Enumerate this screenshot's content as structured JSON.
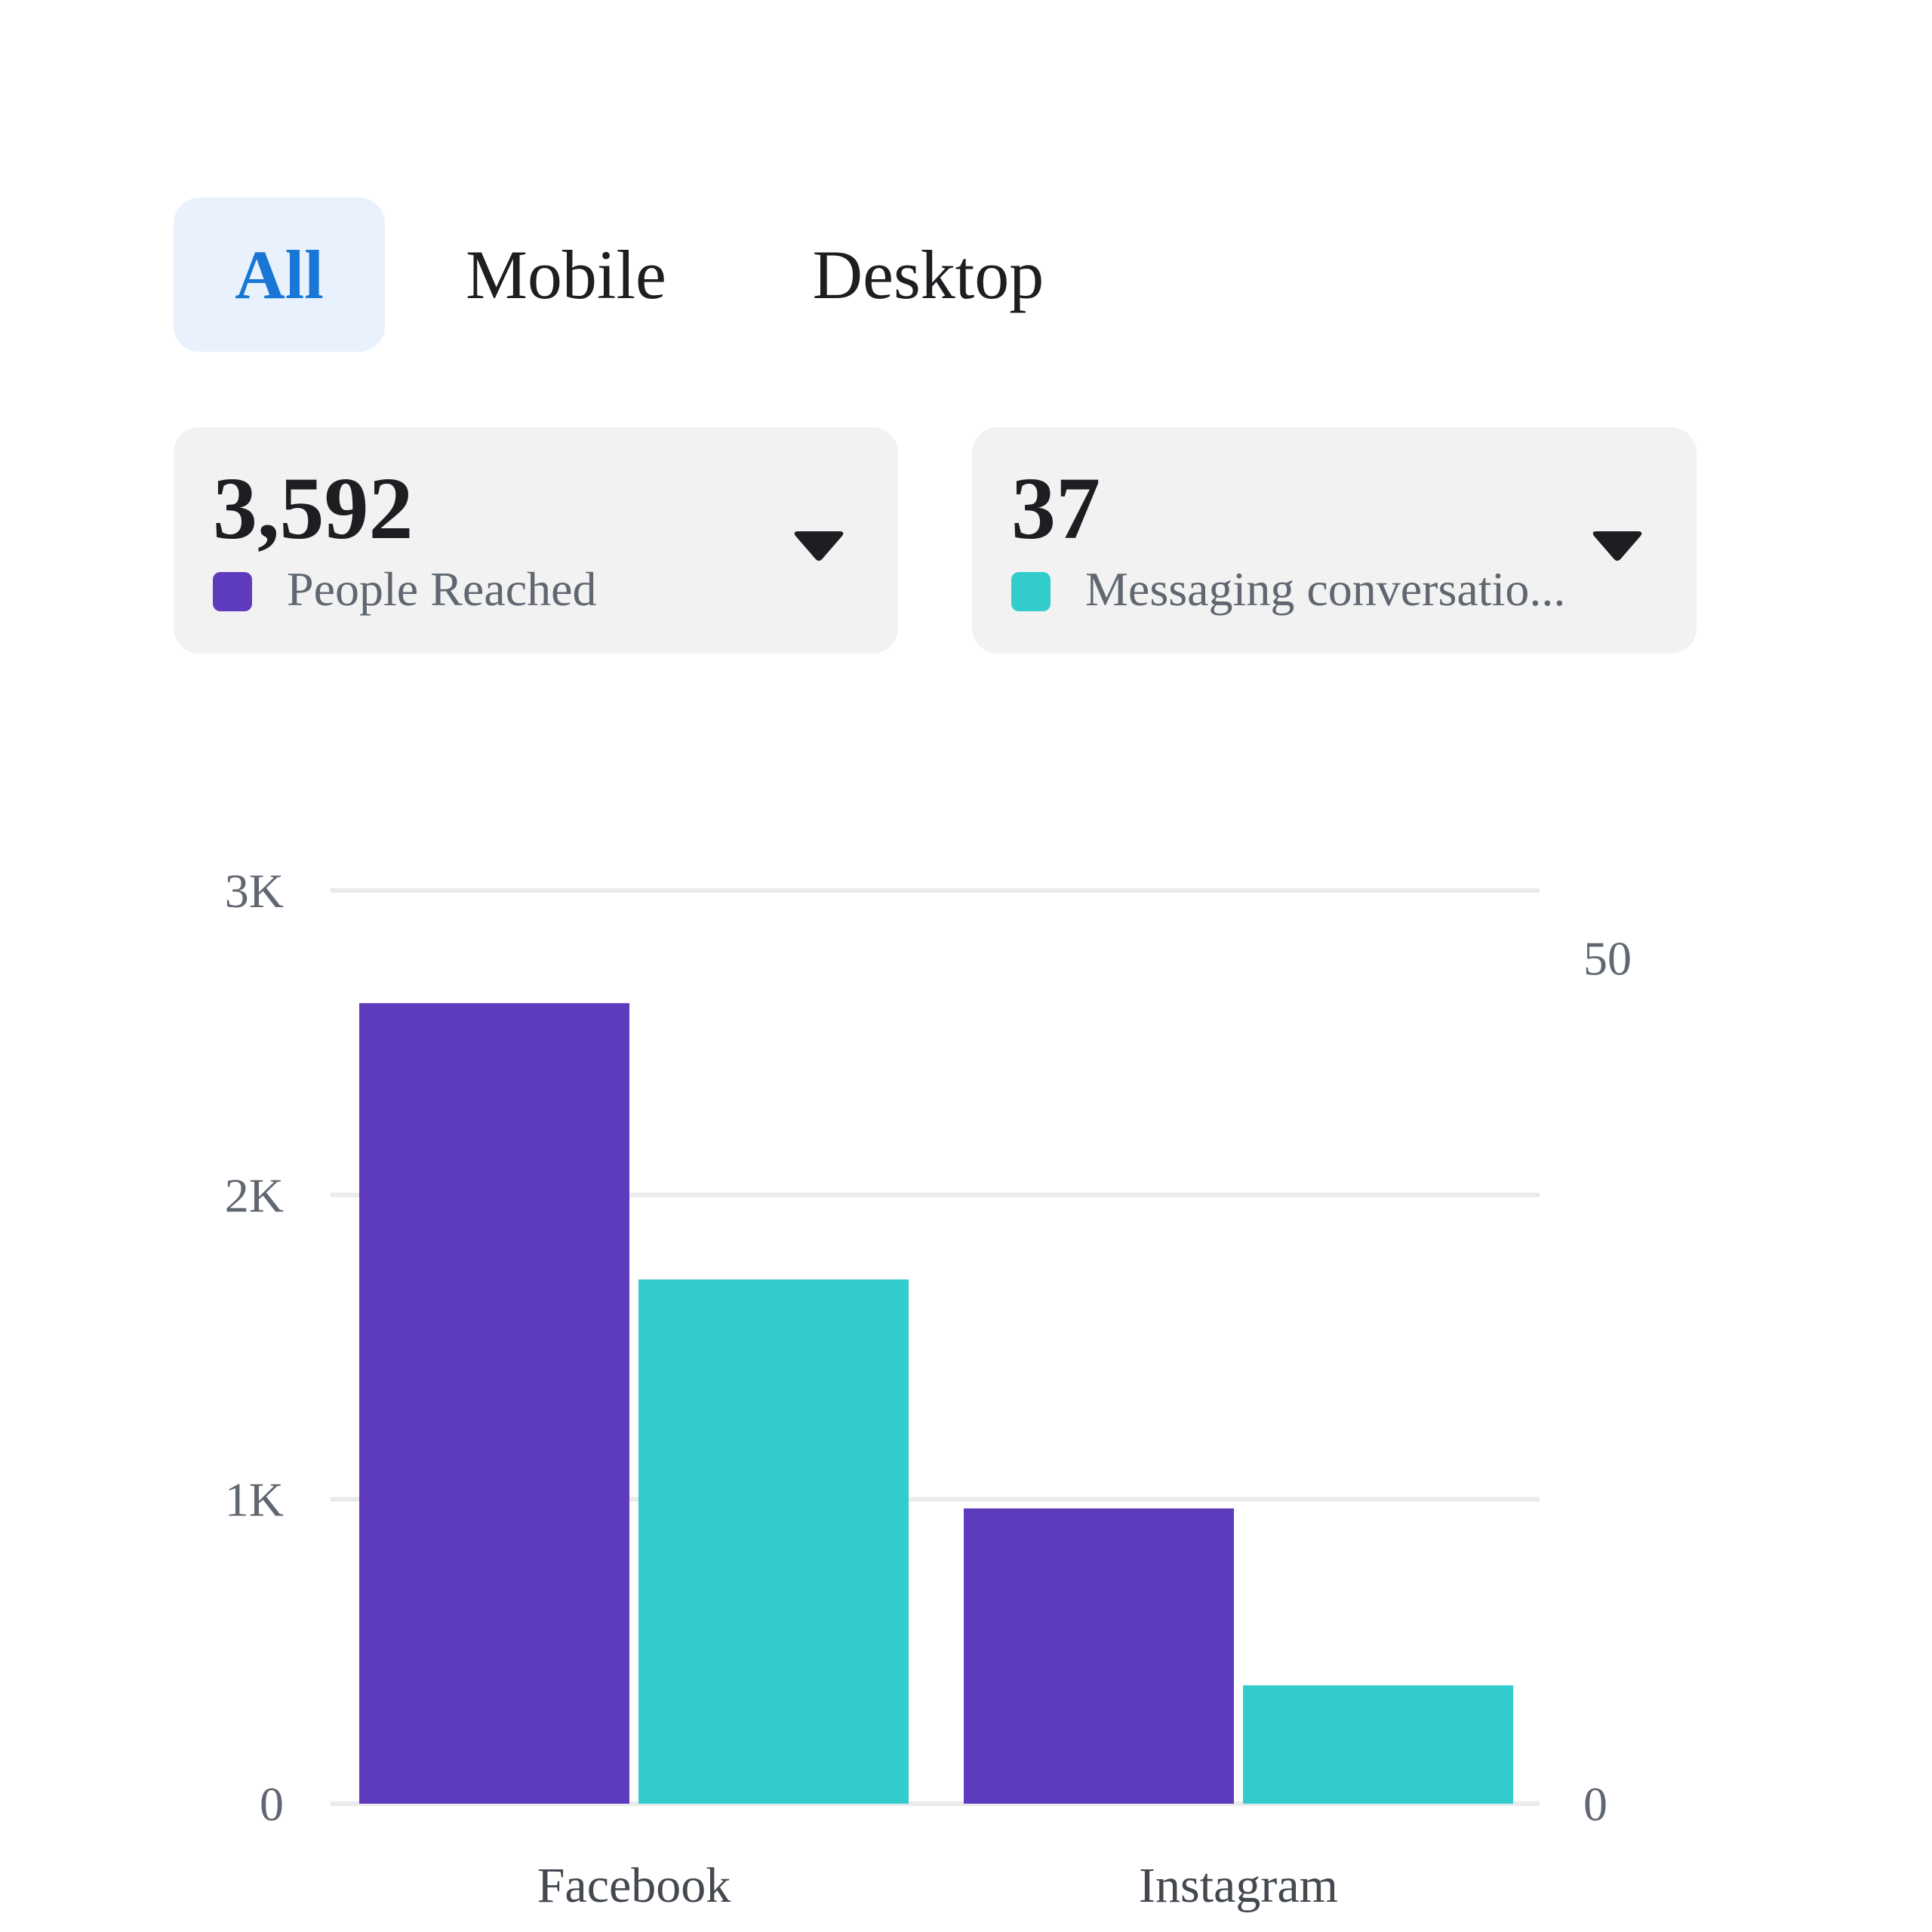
{
  "tabs": [
    {
      "label": "All",
      "active": true
    },
    {
      "label": "Mobile",
      "active": false
    },
    {
      "label": "Desktop",
      "active": false
    }
  ],
  "metrics": [
    {
      "value": "3,592",
      "label": "People Reached",
      "color": "#5e3bbd",
      "icon": "caret-down-icon"
    },
    {
      "value": "37",
      "label": "Messaging conversatio...",
      "color": "#33cccc",
      "icon": "caret-down-icon"
    }
  ],
  "chart_data": {
    "type": "bar",
    "categories": [
      "Facebook",
      "Instagram"
    ],
    "series": [
      {
        "name": "People Reached",
        "axis": "left",
        "color": "#5e3bbd",
        "values": [
          2630,
          970
        ]
      },
      {
        "name": "Messaging conversatio...",
        "axis": "right",
        "color": "#33cccc",
        "values": [
          31,
          7
        ]
      }
    ],
    "left_axis": {
      "ylim": [
        0,
        3000
      ],
      "ticks": [
        0,
        1000,
        2000,
        3000
      ],
      "tick_labels": [
        "0",
        "1K",
        "2K",
        "3K"
      ]
    },
    "right_axis": {
      "ylim": [
        0,
        54
      ],
      "ticks": [
        0,
        50
      ],
      "tick_labels": [
        "0",
        "50"
      ]
    },
    "grid": true,
    "legend": "none",
    "title": "",
    "xlabel": "",
    "ylabel": ""
  }
}
